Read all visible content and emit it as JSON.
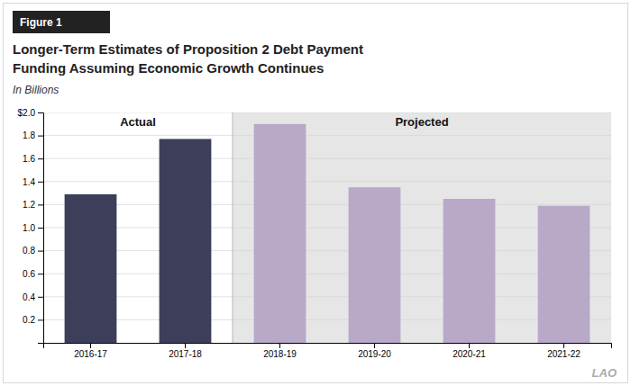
{
  "chart_data": {
    "type": "bar",
    "title": [
      "Longer-Term Estimates of Proposition 2 Debt Payment",
      "Funding Assuming Economic Growth Continues"
    ],
    "subtitle": "In Billions",
    "categories": [
      "2016-17",
      "2017-18",
      "2018-19",
      "2019-20",
      "2020-21",
      "2021-22"
    ],
    "values": [
      1.29,
      1.77,
      1.9,
      1.35,
      1.25,
      1.19
    ],
    "colors": [
      "#3d3f5a",
      "#3d3f5a",
      "#b8a9c9",
      "#b8a9c9",
      "#b8a9c9",
      "#b8a9c9"
    ],
    "annotations": [
      "Figure 1",
      "Actual",
      "Projected",
      "LAO"
    ],
    "ylim": [
      0,
      2.0
    ],
    "yticks": [
      0.2,
      0.4,
      0.6,
      0.8,
      {
        "value": 1.0,
        "label": "1.0"
      },
      1.2,
      1.4,
      1.6,
      1.8,
      {
        "value": 2.0,
        "label": "$2.0"
      }
    ],
    "grid": true
  }
}
